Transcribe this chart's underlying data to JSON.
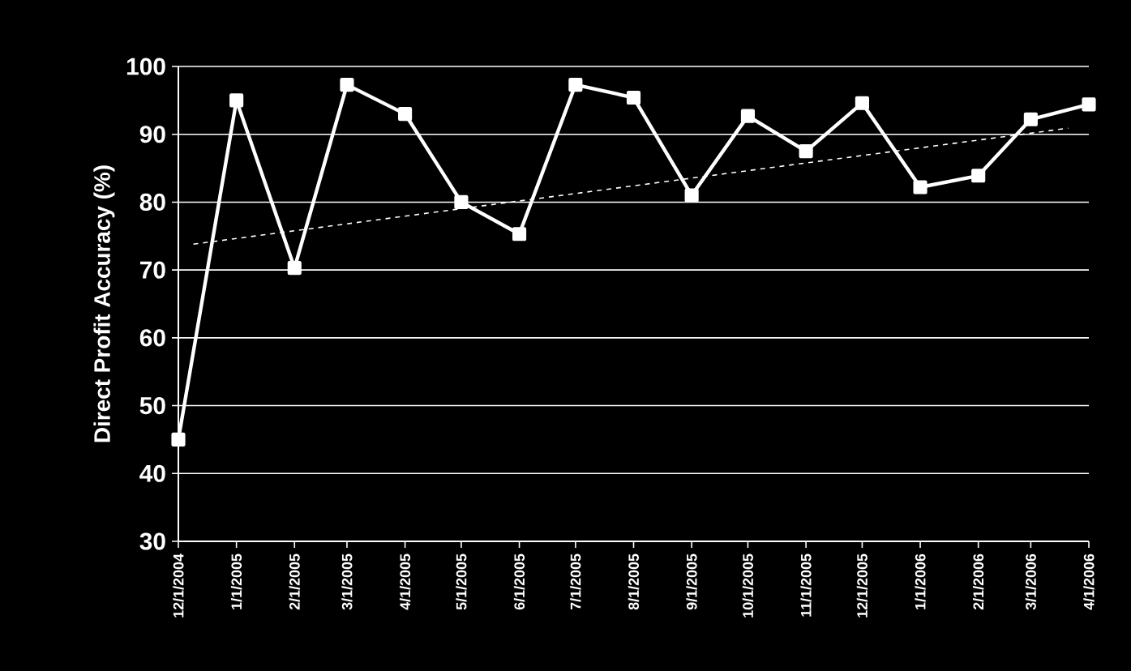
{
  "chart_data": {
    "type": "line",
    "ylabel": "Direct Profit Accuracy (%)",
    "x": [
      "2004-12-01",
      "2005-01-01",
      "2005-02-01",
      "2005-03-01",
      "2005-04-01",
      "2005-05-01",
      "2005-06-01",
      "2005-07-01",
      "2005-08-01",
      "2005-09-01",
      "2005-10-01",
      "2005-11-01",
      "2005-12-01",
      "2006-01-01",
      "2006-02-01",
      "2006-03-01",
      "2006-04-01"
    ],
    "series": [
      {
        "color": "#ffffff",
        "values": [
          45,
          95,
          70.3,
          97.3,
          93,
          80,
          75.3,
          97.3,
          95.4,
          81,
          92.7,
          87.5,
          94.6,
          82.2,
          83.9,
          92.2,
          94.4
        ]
      },
      {
        "type": "line",
        "color": "#ffffff",
        "x": [
          "2004-12-09",
          "2006-03-21"
        ],
        "values": [
          73.8,
          90.9
        ],
        "marker": "none",
        "line_style": "dashed"
      }
    ],
    "xlim": [
      "2004-12-01",
      "2006-04-01"
    ],
    "xticks": [
      {
        "value": "2004-12-01",
        "label": "12/1/2004"
      },
      {
        "value": "2005-01-01",
        "label": "1/1/2005"
      },
      {
        "value": "2005-02-01",
        "label": "2/1/2005"
      },
      {
        "value": "2005-03-01",
        "label": "3/1/2005"
      },
      {
        "value": "2005-04-01",
        "label": "4/1/2005"
      },
      {
        "value": "2005-05-01",
        "label": "5/1/2005"
      },
      {
        "value": "2005-06-01",
        "label": "6/1/2005"
      },
      {
        "value": "2005-07-01",
        "label": "7/1/2005"
      },
      {
        "value": "2005-08-01",
        "label": "8/1/2005"
      },
      {
        "value": "2005-09-01",
        "label": "9/1/2005"
      },
      {
        "value": "2005-10-01",
        "label": "10/1/2005"
      },
      {
        "value": "2005-11-01",
        "label": "11/1/2005"
      },
      {
        "value": "2005-12-01",
        "label": "12/1/2005"
      },
      {
        "value": "2006-01-01",
        "label": "1/1/2006"
      },
      {
        "value": "2006-02-01",
        "label": "2/1/2006"
      },
      {
        "value": "2006-03-01",
        "label": "3/1/2006"
      },
      {
        "value": "2006-04-01",
        "label": "4/1/2006"
      }
    ],
    "ylim": [
      30,
      100
    ],
    "yticks": [
      30,
      40,
      50,
      60,
      70,
      80,
      90,
      100
    ],
    "grid": "y",
    "marker": "square",
    "line_style": "solid"
  }
}
